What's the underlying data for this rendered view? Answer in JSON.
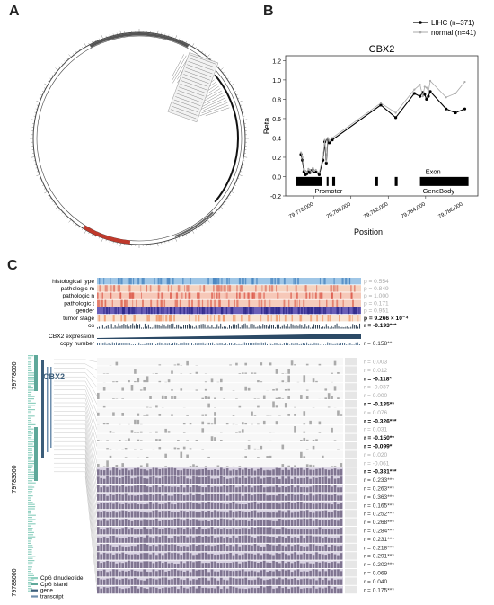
{
  "panels": {
    "a": "A",
    "b": "B",
    "c": "C"
  },
  "chart_data": [
    {
      "type": "circos",
      "panel": "A",
      "colors": {
        "track": "#444444",
        "highlight": "#c0392b",
        "accent": "#111111"
      }
    },
    {
      "type": "line",
      "panel": "B",
      "title": "CBX2",
      "xlabel": "Position",
      "ylabel": "Beta",
      "ylim": [
        -0.2,
        1.25
      ],
      "xlim": [
        79776500,
        79786800
      ],
      "yticks": [
        "1.2",
        "1.0",
        "0.8",
        "0.6",
        "0.4",
        "0.2",
        "0.0",
        "-0.2"
      ],
      "xticks": [
        "79,778,000",
        "79,780,000",
        "79,782,000",
        "79,784,000",
        "79,786,000"
      ],
      "gene_labels": {
        "promoter": "Promoter",
        "exon": "Exon",
        "genebody": "GeneBody"
      },
      "series": [
        {
          "name": "LIHC (n=371)",
          "color": "#000000",
          "x": [
            77320,
            77400,
            77480,
            77560,
            77640,
            77720,
            77800,
            77880,
            77960,
            78040,
            78120,
            78300,
            78500,
            78600,
            78680,
            78760,
            78840,
            79000,
            81600,
            82400,
            83400,
            83700,
            83850,
            83950,
            84050,
            84150,
            84250,
            85100,
            85600,
            86100
          ],
          "y": [
            0.23,
            0.17,
            0.05,
            0.02,
            0.03,
            0.05,
            0.04,
            0.06,
            0.07,
            0.05,
            0.05,
            0.02,
            0.17,
            0.36,
            0.14,
            0.38,
            0.35,
            0.38,
            0.74,
            0.61,
            0.86,
            0.83,
            0.87,
            0.85,
            0.8,
            0.83,
            0.88,
            0.7,
            0.66,
            0.7
          ]
        },
        {
          "name": "normal (n=41)",
          "color": "#aaaaaa",
          "x": [
            77320,
            77400,
            77480,
            77560,
            77640,
            77720,
            77800,
            77880,
            77960,
            78040,
            78120,
            78300,
            78500,
            78600,
            78680,
            78760,
            78840,
            79000,
            81600,
            82400,
            83400,
            83700,
            83850,
            83950,
            84050,
            84150,
            84250,
            85100,
            85600,
            86100
          ],
          "y": [
            0.25,
            0.2,
            0.08,
            0.06,
            0.05,
            0.08,
            0.07,
            0.05,
            0.09,
            0.06,
            0.07,
            0.04,
            0.2,
            0.38,
            0.16,
            0.4,
            0.37,
            0.4,
            0.76,
            0.66,
            0.9,
            0.95,
            0.83,
            0.93,
            0.92,
            0.88,
            0.99,
            0.82,
            0.86,
            0.98
          ]
        }
      ]
    },
    {
      "type": "heatmap",
      "panel": "C",
      "clinical_rows": [
        {
          "label": "histological type",
          "r": "p = 0.554",
          "bold": false
        },
        {
          "label": "pathologic m",
          "r": "p = 0.849",
          "bold": false
        },
        {
          "label": "pathologic n",
          "r": "p = 1.000",
          "bold": false
        },
        {
          "label": "pathologic t",
          "r": "p = 0.171",
          "bold": false
        },
        {
          "label": "gender",
          "r": "p = 0.951",
          "bold": false
        },
        {
          "label": "tumor stage",
          "r": "p = 9.266 × 10⁻⁴",
          "bold": true
        },
        {
          "label": "os",
          "r": "r = -0.193***",
          "bold": true
        }
      ],
      "expression_rows": [
        {
          "label": "CBX2 expression",
          "r": ""
        },
        {
          "label": "copy number",
          "r": "r = 0.158**"
        }
      ],
      "gene_name": "CBX2",
      "coords": [
        "79778000",
        "79783000",
        "79788000"
      ],
      "methylation_r": [
        {
          "r": "r = 0.003",
          "bold": false
        },
        {
          "r": "r = 0.012",
          "bold": false
        },
        {
          "r": "r = -0.118*",
          "bold": true
        },
        {
          "r": "r = -0.037",
          "bold": false
        },
        {
          "r": "r = 0.000",
          "bold": false
        },
        {
          "r": "r = -0.135**",
          "bold": true
        },
        {
          "r": "r = 0.076",
          "bold": false
        },
        {
          "r": "r = -0.326***",
          "bold": true
        },
        {
          "r": "r = 0.031",
          "bold": false
        },
        {
          "r": "r = -0.150**",
          "bold": true
        },
        {
          "r": "r = -0.099*",
          "bold": true
        },
        {
          "r": "r = 0.020",
          "bold": false
        },
        {
          "r": "r = -0.061",
          "bold": false
        },
        {
          "r": "r = -0.331***",
          "bold": true
        },
        {
          "r": "r = 0.233***",
          "bold": false
        },
        {
          "r": "r = 0.263***",
          "bold": false
        },
        {
          "r": "r = 0.363***",
          "bold": false
        },
        {
          "r": "r = 0.165***",
          "bold": false
        },
        {
          "r": "r = 0.252***",
          "bold": false
        },
        {
          "r": "r = 0.268***",
          "bold": false
        },
        {
          "r": "r = 0.284***",
          "bold": false
        },
        {
          "r": "r = 0.231***",
          "bold": false
        },
        {
          "r": "r = 0.218***",
          "bold": false
        },
        {
          "r": "r = 0.291***",
          "bold": false
        },
        {
          "r": "r = 0.202***",
          "bold": false
        },
        {
          "r": "r = 0.069",
          "bold": false
        },
        {
          "r": "r = 0.040",
          "bold": false
        },
        {
          "r": "r = 0.175***",
          "bold": false
        }
      ],
      "legend": [
        {
          "label": "CpG dinucleotide",
          "color": "#8fd0c0"
        },
        {
          "label": "CpG island",
          "color": "#5fa89a"
        },
        {
          "label": "gene",
          "color": "#3b5d7a"
        },
        {
          "label": "transcript",
          "color": "#6f8fae"
        }
      ]
    }
  ]
}
